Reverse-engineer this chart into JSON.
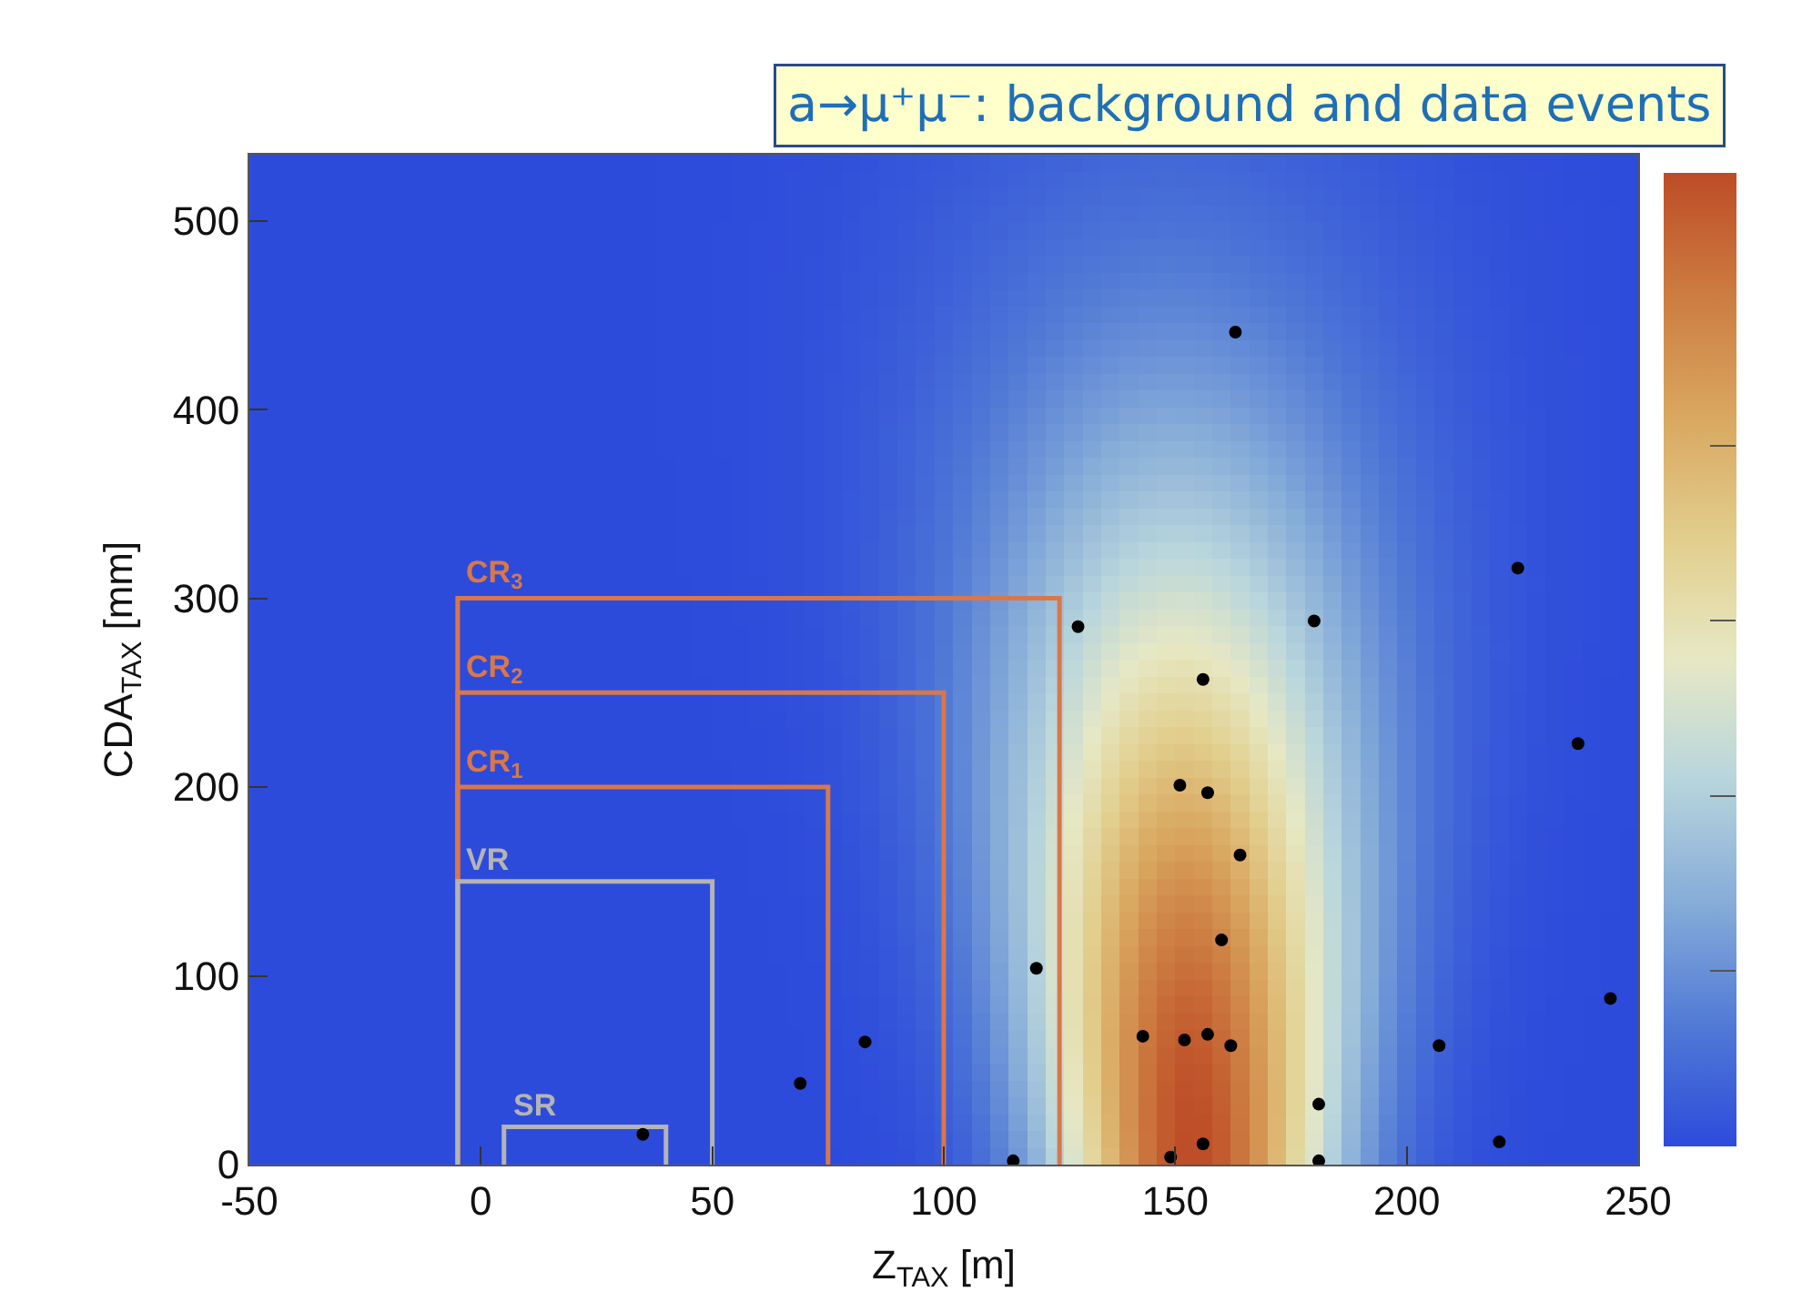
{
  "chart_data": {
    "type": "scatter",
    "title": "a→μ⁺μ⁻: background and data events",
    "xlabel": "Z$_{TAX}$ [m]",
    "ylabel": "CDA$_{TAX}$ [mm]",
    "xlim": [
      -50,
      250
    ],
    "xticks": [
      -50,
      0,
      50,
      100,
      150,
      200,
      250
    ],
    "ylim": [
      0,
      535
    ],
    "yticks": [
      0,
      100,
      200,
      300,
      400,
      500
    ],
    "series": [
      {
        "type": "line",
        "name": "CR$_{3}$",
        "color": "#d9774a",
        "x": [
          -5,
          -5,
          125,
          125
        ],
        "values": [
          0,
          300,
          300,
          0
        ]
      },
      {
        "type": "line",
        "name": "CR$_{2}$",
        "color": "#d9774a",
        "x": [
          -5,
          -5,
          100,
          100
        ],
        "values": [
          0,
          250,
          250,
          0
        ]
      },
      {
        "type": "line",
        "name": "CR$_{1}$",
        "color": "#d9774a",
        "x": [
          -5,
          -5,
          75,
          75
        ],
        "values": [
          0,
          200,
          200,
          0
        ]
      },
      {
        "type": "line",
        "name": "VR",
        "color": "#b4b4b4",
        "x": [
          -5,
          -5,
          50,
          50
        ],
        "values": [
          0,
          150,
          150,
          0
        ]
      },
      {
        "type": "line",
        "name": "SR",
        "color": "#b4b4b4",
        "x": [
          5,
          5,
          40,
          40
        ],
        "values": [
          0,
          20,
          20,
          0
        ]
      },
      {
        "marker": "circle",
        "color": "#000000",
        "x": [
          163,
          129,
          180,
          224,
          156,
          237,
          151,
          157,
          164,
          160,
          120,
          244,
          69,
          83,
          143,
          152,
          157,
          162,
          207,
          181,
          35,
          115,
          149,
          156,
          220,
          181
        ],
        "values": [
          441,
          285,
          288,
          316,
          257,
          223,
          201,
          197,
          164,
          119,
          104,
          88,
          43,
          65,
          68,
          66,
          69,
          63,
          63,
          32,
          16,
          2,
          4,
          11,
          12,
          2
        ]
      }
    ]
  }
}
